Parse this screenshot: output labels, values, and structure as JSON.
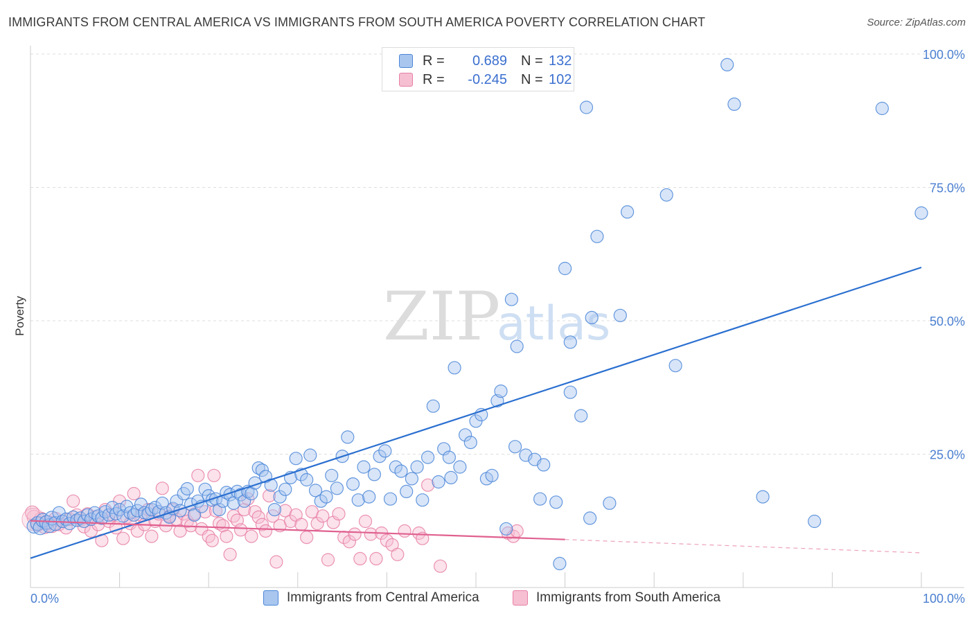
{
  "title": "IMMIGRANTS FROM CENTRAL AMERICA VS IMMIGRANTS FROM SOUTH AMERICA POVERTY CORRELATION CHART",
  "source": "Source: ZipAtlas.com",
  "watermark": {
    "part1": "ZIP",
    "part2": "atlas"
  },
  "colors": {
    "blue": "#4a86d8",
    "blue_fill": "#a9c6ef",
    "blue_line": "#2a6fd0",
    "pink": "#e77fa5",
    "pink_fill": "#f6bfd2",
    "pink_line": "#e0608f",
    "tick_text": "#4a7fd0",
    "grid": "#dddddd"
  },
  "legend": {
    "rows": [
      {
        "r_label": "R =",
        "r_value": "0.689",
        "n_label": "N =",
        "n_value": "132",
        "color": "blue"
      },
      {
        "r_label": "R =",
        "r_value": "-0.245",
        "n_label": "N =",
        "n_value": "102",
        "color": "pink"
      }
    ]
  },
  "chart_data": {
    "type": "scatter",
    "ylabel": "Poverty",
    "xlim": [
      0,
      100
    ],
    "ylim": [
      0,
      100
    ],
    "x_tick_labels": [
      "0.0%",
      "100.0%"
    ],
    "y_tick_labels": [
      "25.0%",
      "50.0%",
      "75.0%",
      "100.0%"
    ],
    "y_ticks": [
      25,
      50,
      75,
      100
    ],
    "grid": "horizontal dashed",
    "series": [
      {
        "name": "Immigrants from Central America",
        "color": "blue",
        "regression": {
          "x": [
            0,
            100
          ],
          "y": [
            5.5,
            60.0
          ],
          "style": "solid"
        },
        "points": [
          [
            0.4,
            11.5
          ],
          [
            0.8,
            12.0
          ],
          [
            1.1,
            11.2
          ],
          [
            1.4,
            12.6
          ],
          [
            1.8,
            12.2
          ],
          [
            2.1,
            11.6
          ],
          [
            2.4,
            13.0
          ],
          [
            2.8,
            12.0
          ],
          [
            3.2,
            14.0
          ],
          [
            3.6,
            12.4
          ],
          [
            4.0,
            12.8
          ],
          [
            4.4,
            12.0
          ],
          [
            4.8,
            13.2
          ],
          [
            5.2,
            12.6
          ],
          [
            5.6,
            13.0
          ],
          [
            6.0,
            12.4
          ],
          [
            6.4,
            13.6
          ],
          [
            6.8,
            12.8
          ],
          [
            7.2,
            14.0
          ],
          [
            7.6,
            13.4
          ],
          [
            8.0,
            13.0
          ],
          [
            8.4,
            14.2
          ],
          [
            8.8,
            13.6
          ],
          [
            9.2,
            15.0
          ],
          [
            9.6,
            13.8
          ],
          [
            10.0,
            14.6
          ],
          [
            10.4,
            13.4
          ],
          [
            10.8,
            15.2
          ],
          [
            11.2,
            14.0
          ],
          [
            11.6,
            13.6
          ],
          [
            12.0,
            14.4
          ],
          [
            12.4,
            15.6
          ],
          [
            12.8,
            14.0
          ],
          [
            13.2,
            13.8
          ],
          [
            13.6,
            14.6
          ],
          [
            14.0,
            15.0
          ],
          [
            14.4,
            14.2
          ],
          [
            14.8,
            15.8
          ],
          [
            15.2,
            14.0
          ],
          [
            15.6,
            13.2
          ],
          [
            16.0,
            14.8
          ],
          [
            16.4,
            16.2
          ],
          [
            16.8,
            14.4
          ],
          [
            17.2,
            17.6
          ],
          [
            17.6,
            18.5
          ],
          [
            18.0,
            15.6
          ],
          [
            18.4,
            13.6
          ],
          [
            18.8,
            16.2
          ],
          [
            19.2,
            15.2
          ],
          [
            19.6,
            18.4
          ],
          [
            20.0,
            17.2
          ],
          [
            20.4,
            16.4
          ],
          [
            20.8,
            16.6
          ],
          [
            21.2,
            14.6
          ],
          [
            21.6,
            16.2
          ],
          [
            22.0,
            17.8
          ],
          [
            22.4,
            17.4
          ],
          [
            22.8,
            15.8
          ],
          [
            23.2,
            18.0
          ],
          [
            23.6,
            17.4
          ],
          [
            24.0,
            16.2
          ],
          [
            24.4,
            18.0
          ],
          [
            24.8,
            17.6
          ],
          [
            25.2,
            19.6
          ],
          [
            25.6,
            22.4
          ],
          [
            26.0,
            22.0
          ],
          [
            26.4,
            20.8
          ],
          [
            27.0,
            19.2
          ],
          [
            27.4,
            14.6
          ],
          [
            28.0,
            17.0
          ],
          [
            28.6,
            18.4
          ],
          [
            29.2,
            20.6
          ],
          [
            29.8,
            24.2
          ],
          [
            30.4,
            21.2
          ],
          [
            31.0,
            20.2
          ],
          [
            31.4,
            24.8
          ],
          [
            32.0,
            18.2
          ],
          [
            32.6,
            16.2
          ],
          [
            33.2,
            17.0
          ],
          [
            33.8,
            21.0
          ],
          [
            34.4,
            18.6
          ],
          [
            35.0,
            24.6
          ],
          [
            35.6,
            28.2
          ],
          [
            36.2,
            19.4
          ],
          [
            36.8,
            16.4
          ],
          [
            37.4,
            22.6
          ],
          [
            38.0,
            17.0
          ],
          [
            38.6,
            21.2
          ],
          [
            39.2,
            24.6
          ],
          [
            39.8,
            25.6
          ],
          [
            40.4,
            16.6
          ],
          [
            41.0,
            22.6
          ],
          [
            41.6,
            21.8
          ],
          [
            42.2,
            18.0
          ],
          [
            42.8,
            20.4
          ],
          [
            43.4,
            22.6
          ],
          [
            44.0,
            16.4
          ],
          [
            44.6,
            24.4
          ],
          [
            45.2,
            34.0
          ],
          [
            45.8,
            19.8
          ],
          [
            46.4,
            26.0
          ],
          [
            47.0,
            24.4
          ],
          [
            47.6,
            41.2
          ],
          [
            48.2,
            22.6
          ],
          [
            48.8,
            28.6
          ],
          [
            49.4,
            27.2
          ],
          [
            50.0,
            31.2
          ],
          [
            50.6,
            32.4
          ],
          [
            51.2,
            20.4
          ],
          [
            51.8,
            21.0
          ],
          [
            52.4,
            35.0
          ],
          [
            52.8,
            36.8
          ],
          [
            53.4,
            11.0
          ],
          [
            54.0,
            54.0
          ],
          [
            54.4,
            26.4
          ],
          [
            54.6,
            45.2
          ],
          [
            55.6,
            24.8
          ],
          [
            56.6,
            24.0
          ],
          [
            57.6,
            23.0
          ],
          [
            57.2,
            16.6
          ],
          [
            59.0,
            16.0
          ],
          [
            59.4,
            4.5
          ],
          [
            60.0,
            59.8
          ],
          [
            60.6,
            36.6
          ],
          [
            61.8,
            32.2
          ],
          [
            62.4,
            90.0
          ],
          [
            62.8,
            13.0
          ],
          [
            63.0,
            50.6
          ],
          [
            63.6,
            65.8
          ],
          [
            65.0,
            15.8
          ],
          [
            66.2,
            51.0
          ],
          [
            67.0,
            70.4
          ],
          [
            72.4,
            41.6
          ],
          [
            71.4,
            73.6
          ],
          [
            78.2,
            98.0
          ],
          [
            79.0,
            90.6
          ],
          [
            82.2,
            17.0
          ],
          [
            88.0,
            12.4
          ],
          [
            95.6,
            89.8
          ],
          [
            100.0,
            70.2
          ],
          [
            60.6,
            46.0
          ],
          [
            47.2,
            20.6
          ]
        ]
      },
      {
        "name": "Immigrants from South America",
        "color": "pink",
        "regression": {
          "x": [
            0,
            60
          ],
          "y": [
            12.5,
            9.0
          ],
          "style": "solid",
          "dashed_extension": {
            "x": [
              60,
              100
            ],
            "y": [
              9.0,
              6.5
            ]
          }
        },
        "points": [
          [
            0.4,
            13.2
          ],
          [
            0.8,
            11.8
          ],
          [
            1.2,
            12.8
          ],
          [
            1.6,
            11.4
          ],
          [
            2.0,
            12.2
          ],
          [
            2.4,
            11.6
          ],
          [
            2.8,
            12.8
          ],
          [
            3.2,
            11.8
          ],
          [
            3.6,
            12.4
          ],
          [
            4.0,
            11.2
          ],
          [
            4.4,
            12.8
          ],
          [
            4.8,
            16.2
          ],
          [
            5.2,
            13.6
          ],
          [
            5.6,
            12.6
          ],
          [
            6.0,
            11.4
          ],
          [
            6.4,
            13.8
          ],
          [
            6.8,
            10.6
          ],
          [
            7.2,
            13.2
          ],
          [
            7.6,
            11.8
          ],
          [
            8.0,
            8.8
          ],
          [
            8.4,
            14.6
          ],
          [
            8.8,
            12.4
          ],
          [
            9.2,
            13.6
          ],
          [
            9.6,
            11.2
          ],
          [
            10.0,
            16.2
          ],
          [
            10.4,
            9.2
          ],
          [
            10.8,
            13.2
          ],
          [
            11.2,
            12.0
          ],
          [
            11.6,
            17.6
          ],
          [
            12.0,
            10.6
          ],
          [
            12.4,
            13.6
          ],
          [
            12.8,
            11.8
          ],
          [
            13.2,
            14.6
          ],
          [
            13.6,
            9.6
          ],
          [
            14.0,
            12.4
          ],
          [
            14.4,
            13.8
          ],
          [
            14.8,
            18.6
          ],
          [
            15.2,
            11.6
          ],
          [
            15.6,
            13.4
          ],
          [
            16.0,
            14.6
          ],
          [
            16.4,
            12.8
          ],
          [
            16.8,
            10.6
          ],
          [
            17.2,
            13.8
          ],
          [
            17.6,
            12.4
          ],
          [
            18.0,
            11.6
          ],
          [
            18.4,
            13.8
          ],
          [
            18.8,
            21.0
          ],
          [
            19.2,
            11.0
          ],
          [
            19.6,
            14.2
          ],
          [
            20.0,
            9.6
          ],
          [
            20.4,
            8.8
          ],
          [
            20.8,
            14.4
          ],
          [
            21.2,
            12.0
          ],
          [
            21.6,
            11.6
          ],
          [
            22.0,
            9.6
          ],
          [
            22.4,
            6.2
          ],
          [
            22.8,
            13.4
          ],
          [
            23.2,
            12.6
          ],
          [
            23.6,
            10.8
          ],
          [
            24.0,
            14.6
          ],
          [
            24.4,
            16.6
          ],
          [
            24.8,
            9.6
          ],
          [
            25.2,
            14.2
          ],
          [
            25.6,
            13.2
          ],
          [
            26.0,
            11.8
          ],
          [
            26.4,
            10.6
          ],
          [
            26.8,
            17.2
          ],
          [
            27.2,
            13.4
          ],
          [
            27.6,
            4.8
          ],
          [
            28.0,
            11.6
          ],
          [
            28.6,
            14.4
          ],
          [
            29.2,
            12.4
          ],
          [
            29.8,
            13.6
          ],
          [
            30.4,
            11.8
          ],
          [
            31.0,
            9.4
          ],
          [
            31.6,
            14.2
          ],
          [
            32.2,
            12.0
          ],
          [
            32.8,
            13.4
          ],
          [
            33.4,
            5.2
          ],
          [
            34.0,
            12.2
          ],
          [
            34.6,
            13.8
          ],
          [
            35.2,
            9.4
          ],
          [
            35.8,
            8.6
          ],
          [
            36.4,
            10.0
          ],
          [
            37.0,
            5.4
          ],
          [
            37.6,
            12.4
          ],
          [
            38.2,
            10.0
          ],
          [
            38.8,
            5.4
          ],
          [
            39.4,
            10.2
          ],
          [
            40.0,
            8.8
          ],
          [
            40.6,
            8.0
          ],
          [
            41.2,
            6.2
          ],
          [
            42.0,
            10.6
          ],
          [
            43.6,
            10.2
          ],
          [
            44.0,
            9.2
          ],
          [
            44.6,
            19.2
          ],
          [
            46.0,
            4.0
          ],
          [
            53.6,
            10.2
          ],
          [
            54.2,
            9.6
          ],
          [
            54.6,
            10.6
          ],
          [
            20.6,
            21.0
          ],
          [
            0.2,
            14.0
          ]
        ]
      }
    ]
  },
  "bottom_legend": {
    "item1": "Immigrants from Central America",
    "item2": "Immigrants from South America"
  }
}
